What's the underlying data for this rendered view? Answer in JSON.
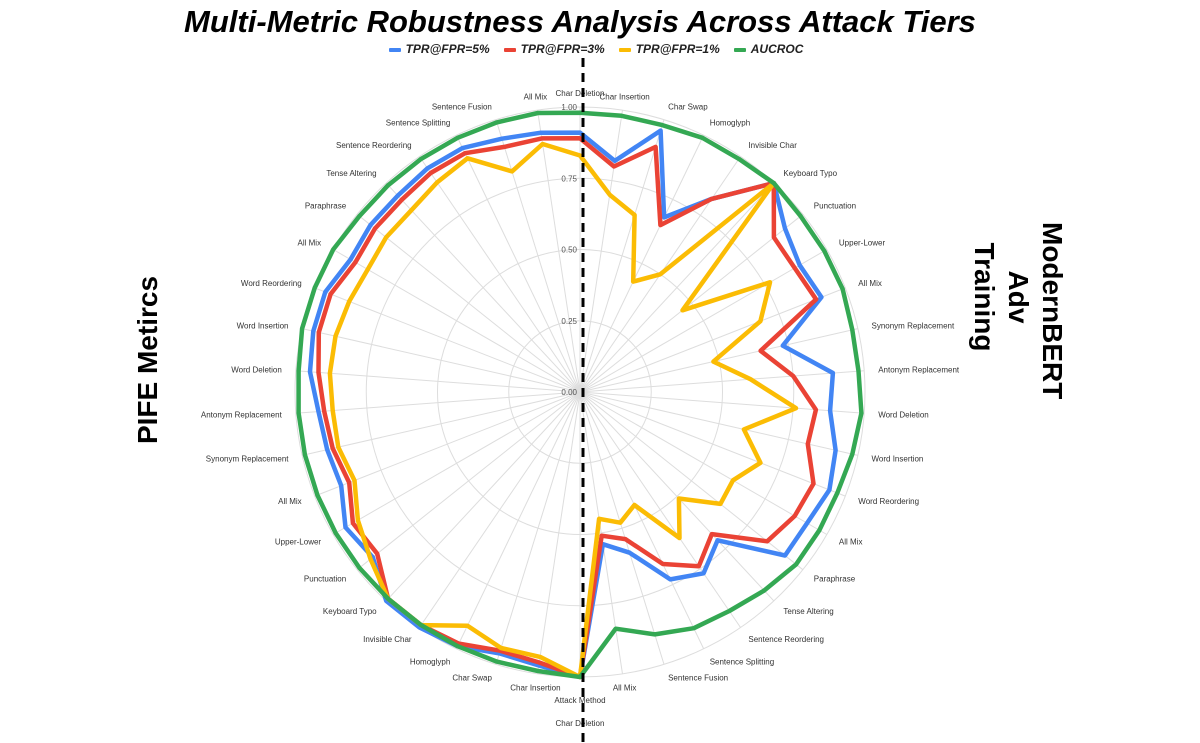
{
  "chart_data": {
    "type": "radar",
    "title": "Multi-Metric Robustness Analysis Across Attack Tiers",
    "left_label": "PIFE Metircs",
    "right_label": "ModernBERT Adv Training",
    "bottom_axis_label": "Attack Method",
    "radial_ticks": [
      "0.00",
      "0.25",
      "0.50",
      "0.75",
      "1.00"
    ],
    "rlim": [
      0,
      1
    ],
    "grid": true,
    "legend_position": "top",
    "categories": [
      "Char Deletion",
      "Char Insertion",
      "Char Swap",
      "Homoglyph",
      "Invisible Char",
      "Keyboard Typo",
      "Punctuation",
      "Upper-Lower",
      "All Mix",
      "Synonym Replacement",
      "Antonym Replacement",
      "Word Deletion",
      "Word Insertion",
      "Word Reordering",
      "All Mix",
      "Paraphrase",
      "Tense Altering",
      "Sentence Reordering",
      "Sentence Splitting",
      "Sentence Fusion",
      "All Mix",
      "Char Deletion",
      "Char Insertion",
      "Char Swap",
      "Homoglyph",
      "Invisible Char",
      "Keyboard Typo",
      "Punctuation",
      "Upper-Lower",
      "All Mix",
      "Synonym Replacement",
      "Antonym Replacement",
      "Word Deletion",
      "Word Insertion",
      "Word Reordering",
      "All Mix",
      "Paraphrase",
      "Tense Altering",
      "Sentence Reordering",
      "Sentence Splitting",
      "Sentence Fusion",
      "All Mix"
    ],
    "series": [
      {
        "name": "TPR@FPR=5%",
        "color": "#4285F4",
        "values": [
          0.91,
          0.82,
          0.96,
          0.68,
          0.82,
          1.0,
          0.92,
          0.89,
          0.91,
          0.73,
          0.89,
          0.88,
          0.92,
          0.94,
          0.92,
          0.92,
          0.71,
          0.77,
          0.73,
          0.59,
          0.54,
          1.0,
          0.97,
          0.96,
          0.99,
          1.0,
          1.0,
          0.93,
          0.95,
          0.9,
          0.91,
          0.92,
          0.95,
          0.96,
          0.96,
          0.93,
          0.94,
          0.94,
          0.95,
          0.95,
          0.93,
          0.92
        ]
      },
      {
        "name": "TPR@FPR=3%",
        "color": "#EA4335",
        "values": [
          0.89,
          0.8,
          0.9,
          0.65,
          0.82,
          1.0,
          0.87,
          0.87,
          0.89,
          0.65,
          0.75,
          0.83,
          0.82,
          0.88,
          0.87,
          0.84,
          0.68,
          0.74,
          0.67,
          0.54,
          0.51,
          1.0,
          0.96,
          0.95,
          0.98,
          0.99,
          0.99,
          0.91,
          0.92,
          0.87,
          0.89,
          0.9,
          0.92,
          0.94,
          0.94,
          0.91,
          0.92,
          0.92,
          0.93,
          0.93,
          0.9,
          0.9
        ]
      },
      {
        "name": "TPR@FPR=1%",
        "color": "#FBBC04",
        "values": [
          0.83,
          0.7,
          0.65,
          0.43,
          0.5,
          1.0,
          0.46,
          0.77,
          0.68,
          0.48,
          0.6,
          0.76,
          0.59,
          0.68,
          0.62,
          0.63,
          0.51,
          0.62,
          0.44,
          0.48,
          0.45,
          1.0,
          0.94,
          0.94,
          0.91,
          0.99,
          0.99,
          0.94,
          0.9,
          0.85,
          0.87,
          0.87,
          0.88,
          0.88,
          0.87,
          0.86,
          0.87,
          0.87,
          0.89,
          0.91,
          0.81,
          0.88
        ]
      },
      {
        "name": "AUCROC",
        "color": "#34A853",
        "values": [
          0.98,
          0.98,
          0.98,
          0.99,
          0.99,
          1.0,
          0.99,
          0.99,
          0.99,
          0.98,
          0.98,
          0.99,
          0.98,
          0.97,
          0.97,
          0.97,
          0.95,
          0.93,
          0.92,
          0.89,
          0.84,
          1.0,
          0.99,
          0.99,
          0.99,
          0.99,
          0.99,
          0.99,
          0.99,
          0.99,
          0.99,
          0.99,
          0.99,
          1.0,
          1.0,
          1.0,
          0.99,
          0.99,
          0.99,
          0.99,
          0.99,
          0.99
        ]
      }
    ]
  }
}
